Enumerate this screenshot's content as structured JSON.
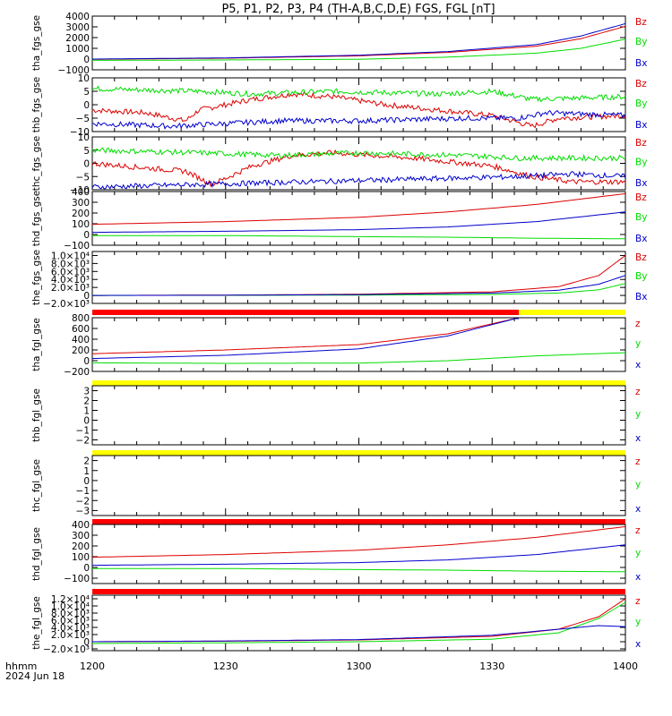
{
  "title": "P5, P1, P2, P3, P4 (TH-A,B,C,D,E) FGS, FGL [nT]",
  "footer": {
    "format_label": "hhmm",
    "date_label": "2024 Jun 18"
  },
  "colors": {
    "x": "#0000cc",
    "y": "#00dd00",
    "z": "#dd0000",
    "bar_red": "#ff0000",
    "bar_yellow": "#ffff00"
  },
  "x_axis": {
    "ticks": [
      "1200",
      "1230",
      "1300",
      "1330",
      "1400"
    ],
    "range_hours": [
      12.0,
      14.0
    ]
  },
  "chart_data": [
    {
      "type": "line",
      "ylabel": "tha_fgs_gse",
      "ylim": [
        -1000,
        4000
      ],
      "tick_labels": [
        "4000",
        "3000",
        "2000",
        "1000",
        "0",
        "−1000"
      ],
      "tick_values": [
        4000,
        3000,
        2000,
        1000,
        0,
        -1000
      ],
      "legend": [
        "Bz",
        "By",
        "Bx"
      ],
      "noise": 0,
      "series": [
        {
          "name": "Bz",
          "component": "z",
          "x": [
            12.0,
            12.5,
            13.0,
            13.333,
            13.667,
            13.833,
            14.0
          ],
          "values": [
            -20,
            80,
            300,
            620,
            1200,
            1900,
            3050
          ]
        },
        {
          "name": "By",
          "component": "y",
          "x": [
            12.0,
            12.5,
            13.0,
            13.333,
            13.667,
            13.833,
            14.0
          ],
          "values": [
            -120,
            -80,
            -20,
            180,
            550,
            1000,
            1850
          ]
        },
        {
          "name": "Bx",
          "component": "x",
          "x": [
            12.0,
            12.5,
            13.0,
            13.333,
            13.667,
            13.833,
            14.0
          ],
          "values": [
            0,
            110,
            360,
            700,
            1350,
            2150,
            3300
          ]
        }
      ]
    },
    {
      "type": "line",
      "ylabel": "thb_fgs_gse",
      "ylim": [
        -10,
        10
      ],
      "tick_labels": [
        "10",
        "5",
        "0",
        "−5",
        "−10"
      ],
      "tick_values": [
        10,
        5,
        0,
        -5,
        -10
      ],
      "legend": [
        "Bz",
        "By",
        "Bx"
      ],
      "noise": 1.0,
      "series": [
        {
          "name": "Bz",
          "component": "z",
          "x": [
            12.0,
            12.2,
            12.35,
            12.4,
            12.6,
            12.75,
            12.9,
            13.1,
            13.3,
            13.5,
            13.65,
            13.75,
            14.0
          ],
          "values": [
            -2,
            -3,
            -6,
            -2,
            2,
            4,
            3,
            0,
            -2,
            -4,
            -8,
            -5,
            -4
          ]
        },
        {
          "name": "By",
          "component": "y",
          "x": [
            12.0,
            12.4,
            12.6,
            12.9,
            13.3,
            13.5,
            13.65,
            14.0
          ],
          "values": [
            6,
            5,
            4,
            5,
            4,
            5,
            2,
            3
          ]
        },
        {
          "name": "Bx",
          "component": "x",
          "x": [
            12.0,
            12.3,
            12.7,
            13.0,
            13.4,
            13.6,
            13.7,
            14.0
          ],
          "values": [
            -7,
            -8,
            -6,
            -6,
            -5,
            -5,
            -3,
            -4
          ]
        }
      ]
    },
    {
      "type": "line",
      "ylabel": "thc_fgs_gse",
      "ylim": [
        -10,
        10
      ],
      "tick_labels": [
        "10",
        "5",
        "0",
        "−5",
        "−10"
      ],
      "tick_values": [
        10,
        5,
        0,
        -5,
        -10
      ],
      "legend": [
        "Bz",
        "By",
        "Bx"
      ],
      "noise": 1.0,
      "series": [
        {
          "name": "Bz",
          "component": "z",
          "x": [
            12.0,
            12.35,
            12.45,
            12.6,
            12.75,
            12.9,
            13.2,
            13.5,
            13.65,
            13.8,
            14.0
          ],
          "values": [
            0,
            -3,
            -8,
            -1,
            3,
            4,
            2,
            -1,
            -5,
            -7,
            -7
          ]
        },
        {
          "name": "By",
          "component": "y",
          "x": [
            12.0,
            12.4,
            12.7,
            13.0,
            13.4,
            13.6,
            14.0
          ],
          "values": [
            5,
            4,
            3,
            4,
            3,
            2,
            2
          ]
        },
        {
          "name": "Bx",
          "component": "x",
          "x": [
            12.0,
            12.4,
            12.8,
            13.2,
            13.6,
            13.8,
            14.0
          ],
          "values": [
            -9,
            -8,
            -7,
            -6,
            -5,
            -4,
            -5
          ]
        }
      ]
    },
    {
      "type": "line",
      "ylabel": "thd_fgs_gse",
      "ylim": [
        -100,
        400
      ],
      "tick_labels": [
        "400",
        "300",
        "200",
        "100",
        "0",
        "−100"
      ],
      "tick_values": [
        400,
        300,
        200,
        100,
        0,
        -100
      ],
      "legend": [
        "Bz",
        "By",
        "Bx"
      ],
      "noise": 0,
      "series": [
        {
          "name": "Bz",
          "component": "z",
          "x": [
            12.0,
            12.5,
            13.0,
            13.333,
            13.667,
            14.0
          ],
          "values": [
            95,
            120,
            160,
            210,
            280,
            380
          ]
        },
        {
          "name": "By",
          "component": "y",
          "x": [
            12.0,
            12.5,
            13.0,
            13.333,
            13.667,
            14.0
          ],
          "values": [
            -10,
            -10,
            -20,
            -25,
            -35,
            -40
          ]
        },
        {
          "name": "Bx",
          "component": "x",
          "x": [
            12.0,
            12.5,
            13.0,
            13.333,
            13.667,
            14.0
          ],
          "values": [
            20,
            30,
            45,
            70,
            120,
            210
          ]
        }
      ]
    },
    {
      "type": "line",
      "ylabel": "the_fgs_gse",
      "ylim": [
        -2000,
        11000
      ],
      "tick_labels": [
        "1.0×10⁴",
        "8.0×10³",
        "6.0×10³",
        "4.0×10³",
        "2.0×10³",
        "0",
        "−2.0×10³"
      ],
      "tick_values": [
        10000,
        8000,
        6000,
        4000,
        2000,
        0,
        -2000
      ],
      "legend": [
        "Bz",
        "By",
        "Bx"
      ],
      "noise": 0,
      "series": [
        {
          "name": "Bz",
          "component": "z",
          "x": [
            12.0,
            12.5,
            13.0,
            13.5,
            13.75,
            13.9,
            14.0
          ],
          "values": [
            0,
            80,
            300,
            900,
            2200,
            5000,
            10000
          ]
        },
        {
          "name": "By",
          "component": "y",
          "x": [
            12.0,
            12.5,
            13.0,
            13.5,
            13.75,
            13.9,
            14.0
          ],
          "values": [
            0,
            20,
            80,
            250,
            600,
            1400,
            3000
          ]
        },
        {
          "name": "Bx",
          "component": "x",
          "x": [
            12.0,
            12.5,
            13.0,
            13.5,
            13.75,
            13.9,
            14.0
          ],
          "values": [
            0,
            50,
            200,
            600,
            1300,
            2800,
            5000
          ]
        }
      ]
    },
    {
      "type": "line",
      "ylabel": "tha_fgl_gse",
      "ylim": [
        -200,
        800
      ],
      "tick_labels": [
        "800",
        "600",
        "400",
        "200",
        "0",
        "−200"
      ],
      "tick_values": [
        800,
        600,
        400,
        200,
        0,
        -200
      ],
      "legend": [
        "z",
        "y",
        "x"
      ],
      "noise": 0,
      "status_bar": [
        {
          "from": 12.0,
          "to": 13.6,
          "color": "red"
        },
        {
          "from": 13.6,
          "to": 14.0,
          "color": "yellow"
        }
      ],
      "series": [
        {
          "name": "z",
          "component": "z",
          "x": [
            12.0,
            12.5,
            13.0,
            13.333,
            13.6
          ],
          "values": [
            130,
            200,
            300,
            500,
            800
          ]
        },
        {
          "name": "y",
          "component": "y",
          "x": [
            12.0,
            12.5,
            13.0,
            13.333,
            13.667,
            14.0
          ],
          "values": [
            -40,
            -50,
            -45,
            0,
            90,
            150
          ]
        },
        {
          "name": "x",
          "component": "x",
          "x": [
            12.0,
            12.5,
            13.0,
            13.333,
            13.6
          ],
          "values": [
            40,
            100,
            220,
            460,
            800
          ]
        }
      ]
    },
    {
      "type": "line",
      "ylabel": "thb_fgl_gse",
      "ylim": [
        -2.5,
        3.5
      ],
      "tick_labels": [
        "3",
        "2",
        "1",
        "0",
        "−1",
        "−2"
      ],
      "tick_values": [
        3,
        2,
        1,
        0,
        -1,
        -2
      ],
      "legend": [
        "z",
        "y",
        "x"
      ],
      "noise": 0,
      "status_bar": [
        {
          "from": 12.0,
          "to": 14.0,
          "color": "yellow"
        }
      ],
      "series": []
    },
    {
      "type": "line",
      "ylabel": "thc_fgl_gse",
      "ylim": [
        -3.5,
        2.5
      ],
      "tick_labels": [
        "2",
        "1",
        "0",
        "−1",
        "−2",
        "−3"
      ],
      "tick_values": [
        2,
        1,
        0,
        -1,
        -2,
        -3
      ],
      "legend": [
        "z",
        "y",
        "x"
      ],
      "noise": 0,
      "status_bar": [
        {
          "from": 12.0,
          "to": 14.0,
          "color": "yellow"
        }
      ],
      "series": []
    },
    {
      "type": "line",
      "ylabel": "thd_fgl_gse",
      "ylim": [
        -150,
        400
      ],
      "tick_labels": [
        "400",
        "300",
        "200",
        "100",
        "0",
        "−100"
      ],
      "tick_values": [
        400,
        300,
        200,
        100,
        0,
        -100
      ],
      "legend": [
        "z",
        "y",
        "x"
      ],
      "noise": 0,
      "status_bar": [
        {
          "from": 12.0,
          "to": 14.0,
          "color": "red"
        }
      ],
      "series": [
        {
          "name": "z",
          "component": "z",
          "x": [
            12.0,
            12.5,
            13.0,
            13.333,
            13.667,
            14.0
          ],
          "values": [
            95,
            120,
            160,
            210,
            280,
            380
          ]
        },
        {
          "name": "y",
          "component": "y",
          "x": [
            12.0,
            12.5,
            13.0,
            13.333,
            13.667,
            14.0
          ],
          "values": [
            -10,
            -10,
            -20,
            -25,
            -35,
            -40
          ]
        },
        {
          "name": "x",
          "component": "x",
          "x": [
            12.0,
            12.5,
            13.0,
            13.333,
            13.667,
            14.0
          ],
          "values": [
            20,
            30,
            45,
            70,
            120,
            210
          ]
        }
      ]
    },
    {
      "type": "line",
      "ylabel": "the_fgl_gse",
      "ylim": [
        -2500,
        13000
      ],
      "tick_labels": [
        "1.2×10⁴",
        "1.0×10⁴",
        "8.0×10³",
        "6.0×10³",
        "4.0×10³",
        "2.0×10³",
        "0",
        "−2.0×10³"
      ],
      "tick_values": [
        12000,
        10000,
        8000,
        6000,
        4000,
        2000,
        0,
        -2000
      ],
      "legend": [
        "z",
        "y",
        "x"
      ],
      "noise": 0,
      "status_bar": [
        {
          "from": 12.0,
          "to": 14.0,
          "color": "red"
        }
      ],
      "series": [
        {
          "name": "z",
          "component": "z",
          "x": [
            12.0,
            12.5,
            13.0,
            13.5,
            13.75,
            13.9,
            14.0
          ],
          "values": [
            0,
            150,
            500,
            1500,
            3500,
            7000,
            12000
          ]
        },
        {
          "name": "y",
          "component": "y",
          "x": [
            12.0,
            12.5,
            13.0,
            13.5,
            13.75,
            13.9,
            14.0
          ],
          "values": [
            -500,
            -300,
            0,
            700,
            2500,
            6500,
            11000
          ]
        },
        {
          "name": "x",
          "component": "x",
          "x": [
            12.0,
            12.5,
            13.0,
            13.5,
            13.75,
            13.9,
            14.0
          ],
          "values": [
            0,
            200,
            600,
            1800,
            3500,
            4500,
            4200
          ]
        }
      ]
    }
  ]
}
